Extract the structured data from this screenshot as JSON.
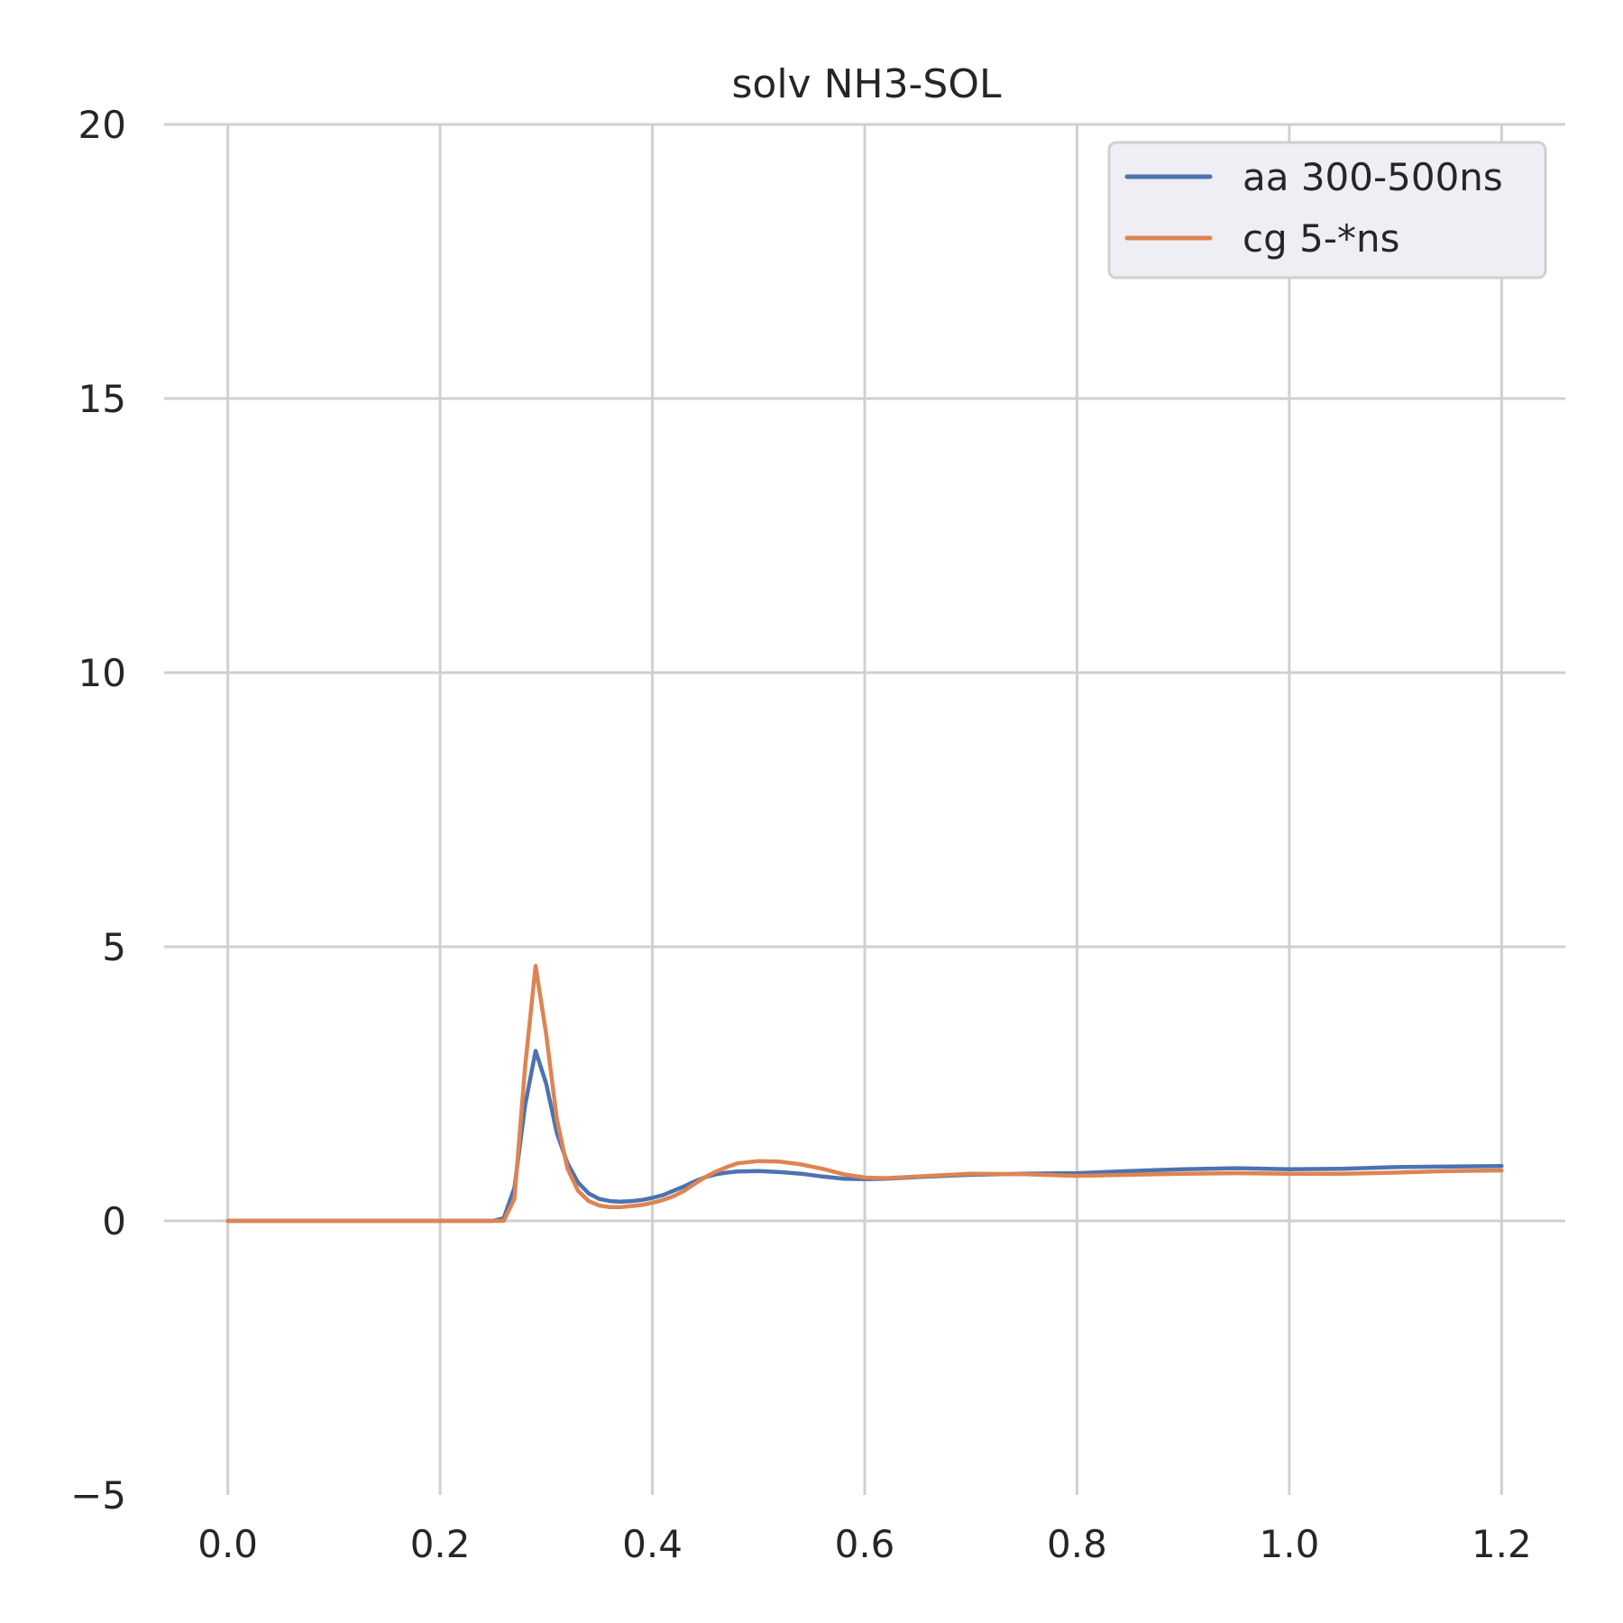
{
  "chart_data": {
    "type": "line",
    "title": "solv NH3-SOL",
    "xlabel": "",
    "ylabel": "",
    "xlim": [
      -0.06,
      1.26
    ],
    "ylim": [
      -5,
      20
    ],
    "xticks": [
      0.0,
      0.2,
      0.4,
      0.6,
      0.8,
      1.0,
      1.2
    ],
    "xtick_labels": [
      "0.0",
      "0.2",
      "0.4",
      "0.6",
      "0.8",
      "1.0",
      "1.2"
    ],
    "yticks": [
      -5,
      0,
      5,
      10,
      15,
      20
    ],
    "ytick_labels": [
      "−5",
      "0",
      "5",
      "10",
      "15",
      "20"
    ],
    "grid": true,
    "legend_position": "top-right",
    "series": [
      {
        "name": "aa 300-500ns",
        "color": "#4c72b0",
        "x": [
          0.0,
          0.25,
          0.26,
          0.27,
          0.28,
          0.29,
          0.3,
          0.31,
          0.32,
          0.33,
          0.34,
          0.35,
          0.36,
          0.37,
          0.38,
          0.39,
          0.4,
          0.41,
          0.42,
          0.43,
          0.44,
          0.45,
          0.46,
          0.47,
          0.48,
          0.5,
          0.52,
          0.54,
          0.56,
          0.58,
          0.6,
          0.62,
          0.65,
          0.7,
          0.75,
          0.8,
          0.85,
          0.9,
          0.95,
          1.0,
          1.05,
          1.1,
          1.15,
          1.2
        ],
        "y": [
          0,
          0,
          0.05,
          0.6,
          2.1,
          3.1,
          2.5,
          1.6,
          1.05,
          0.7,
          0.5,
          0.4,
          0.36,
          0.35,
          0.36,
          0.38,
          0.42,
          0.47,
          0.55,
          0.63,
          0.72,
          0.8,
          0.85,
          0.88,
          0.9,
          0.91,
          0.89,
          0.86,
          0.81,
          0.77,
          0.76,
          0.77,
          0.8,
          0.84,
          0.86,
          0.87,
          0.91,
          0.94,
          0.96,
          0.94,
          0.95,
          0.98,
          0.99,
          1.0
        ]
      },
      {
        "name": "cg 5-*ns",
        "color": "#dd8452",
        "x": [
          0.0,
          0.25,
          0.26,
          0.27,
          0.28,
          0.29,
          0.3,
          0.31,
          0.32,
          0.33,
          0.34,
          0.35,
          0.36,
          0.37,
          0.38,
          0.39,
          0.4,
          0.41,
          0.42,
          0.43,
          0.44,
          0.45,
          0.46,
          0.47,
          0.48,
          0.5,
          0.52,
          0.54,
          0.56,
          0.58,
          0.6,
          0.62,
          0.65,
          0.7,
          0.75,
          0.8,
          0.85,
          0.9,
          0.95,
          1.0,
          1.05,
          1.1,
          1.15,
          1.2
        ],
        "y": [
          0,
          0,
          0.0,
          0.4,
          2.8,
          4.65,
          3.4,
          1.85,
          0.95,
          0.55,
          0.36,
          0.28,
          0.25,
          0.25,
          0.27,
          0.29,
          0.33,
          0.38,
          0.45,
          0.55,
          0.68,
          0.8,
          0.9,
          0.98,
          1.05,
          1.09,
          1.08,
          1.03,
          0.95,
          0.85,
          0.79,
          0.78,
          0.81,
          0.86,
          0.85,
          0.82,
          0.84,
          0.86,
          0.87,
          0.86,
          0.86,
          0.88,
          0.91,
          0.92
        ]
      }
    ]
  }
}
